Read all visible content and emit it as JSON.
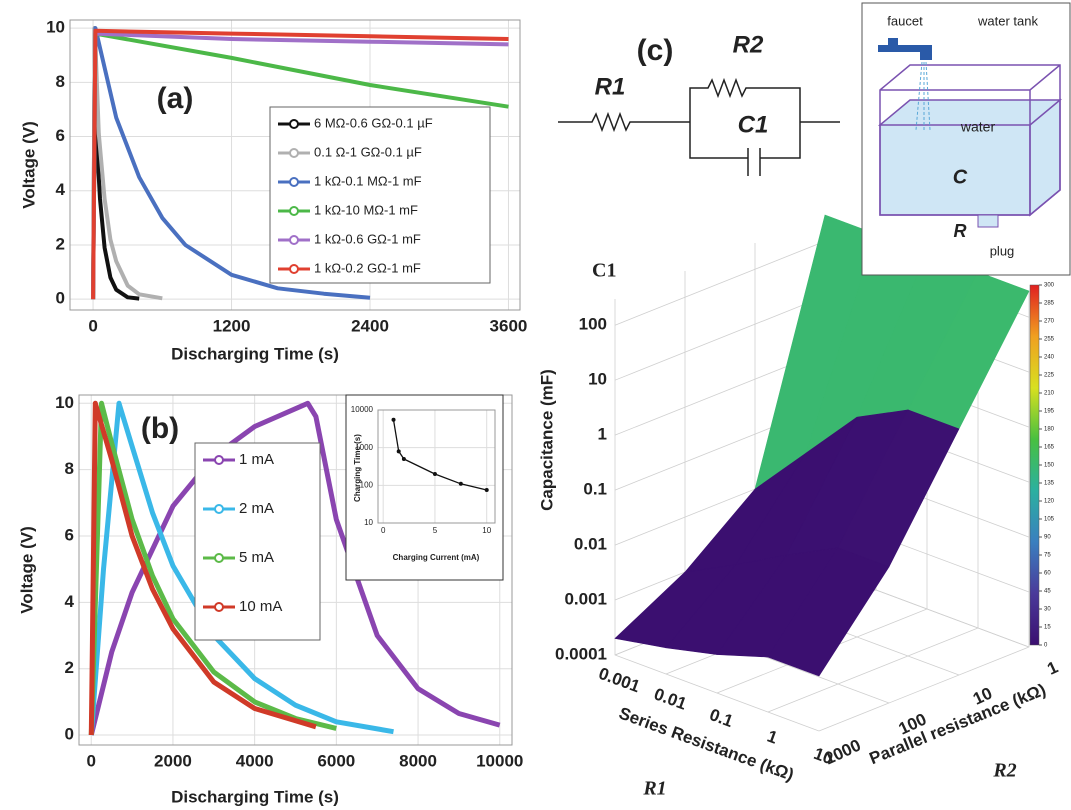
{
  "chart_data": [
    {
      "type": "line",
      "title": "(a)",
      "x_label": "Discharging Time (s)",
      "y_label": "Voltage (V)",
      "xlim": [
        -200,
        3700
      ],
      "ylim": [
        -0.4,
        10.3
      ],
      "xticks": [
        0,
        1200,
        2400,
        3600
      ],
      "yticks": [
        0,
        2,
        4,
        6,
        8,
        10
      ],
      "grid": true,
      "series": [
        {
          "name": "6 MΩ-0.6 GΩ-0.1 µF",
          "color": "#111111",
          "x": [
            0,
            15,
            30,
            60,
            100,
            150,
            200,
            300,
            400
          ],
          "values": [
            0,
            10,
            6,
            3.7,
            1.9,
            0.8,
            0.35,
            0.07,
            0.02
          ]
        },
        {
          "name": "0.1 Ω-1 GΩ-0.1 µF",
          "color": "#b0b0b0",
          "x": [
            0,
            15,
            50,
            100,
            150,
            200,
            300,
            400,
            600
          ],
          "values": [
            0,
            10,
            6.1,
            3.7,
            2.2,
            1.4,
            0.5,
            0.18,
            0.03
          ]
        },
        {
          "name": "1 kΩ-0.1 MΩ-1 mF",
          "color": "#4a70c0",
          "x": [
            0,
            20,
            200,
            400,
            600,
            800,
            1200,
            1600,
            2000,
            2400
          ],
          "values": [
            0,
            10,
            6.7,
            4.5,
            3,
            2,
            0.9,
            0.4,
            0.2,
            0.05
          ]
        },
        {
          "name": "1 kΩ-10 MΩ-1 mF",
          "color": "#4cb848",
          "x": [
            0,
            20,
            1200,
            2400,
            3600
          ],
          "values": [
            0,
            9.8,
            8.9,
            7.9,
            7.1
          ]
        },
        {
          "name": "1 kΩ-0.6 GΩ-1 mF",
          "color": "#a070c8",
          "x": [
            0,
            20,
            1200,
            2400,
            3600
          ],
          "values": [
            0,
            9.8,
            9.6,
            9.5,
            9.4
          ]
        },
        {
          "name": "1 kΩ-0.2 GΩ-1 mF",
          "color": "#e04030",
          "x": [
            0,
            20,
            1200,
            2400,
            3600
          ],
          "values": [
            0,
            9.9,
            9.8,
            9.7,
            9.6
          ]
        }
      ]
    },
    {
      "type": "line",
      "title": "(b)",
      "x_label": "Discharging Time (s)",
      "y_label": "Voltage (V)",
      "xlim": [
        -300,
        10300
      ],
      "ylim": [
        -0.3,
        10.25
      ],
      "xticks": [
        0,
        2000,
        4000,
        6000,
        8000,
        10000
      ],
      "yticks": [
        0,
        2,
        4,
        6,
        8,
        10
      ],
      "grid": true,
      "series": [
        {
          "name": "1 mA",
          "color": "#8a45b0",
          "x": [
            0,
            500,
            1000,
            2000,
            3000,
            4000,
            5300,
            5500,
            6000,
            7000,
            8000,
            9000,
            10000
          ],
          "values": [
            0,
            2.5,
            4.3,
            6.9,
            8.4,
            9.3,
            10,
            9.6,
            6.5,
            3,
            1.4,
            0.65,
            0.3
          ]
        },
        {
          "name": "2 mA",
          "color": "#3ab8e8",
          "x": [
            0,
            300,
            680,
            1000,
            1500,
            2000,
            3000,
            4000,
            5000,
            6000,
            7400
          ],
          "values": [
            0,
            5,
            10,
            8.7,
            6.7,
            5.1,
            3,
            1.7,
            0.9,
            0.4,
            0.1
          ]
        },
        {
          "name": "5 mA",
          "color": "#5cba48",
          "x": [
            0,
            250,
            500,
            1000,
            1500,
            2000,
            3000,
            4000,
            5000,
            6000
          ],
          "values": [
            0,
            10,
            8.8,
            6.5,
            4.8,
            3.5,
            1.9,
            1,
            0.5,
            0.2
          ]
        },
        {
          "name": "10 mA",
          "color": "#d03a28",
          "x": [
            0,
            100,
            500,
            1000,
            1500,
            2000,
            3000,
            4000,
            5500
          ],
          "values": [
            0,
            10,
            8.3,
            6,
            4.4,
            3.2,
            1.6,
            0.8,
            0.25
          ]
        }
      ]
    },
    {
      "type": "line",
      "x_label": "Charging Current (mA)",
      "y_label": "Charging Time (s)",
      "log_y": true,
      "xlim": [
        -0.5,
        10.8
      ],
      "ylim": [
        10,
        10000
      ],
      "xticks": [
        0,
        5,
        10
      ],
      "yticks": [
        10,
        100,
        1000,
        10000
      ],
      "grid": true,
      "series": [
        {
          "color": "#111111",
          "x": [
            1,
            1.5,
            2,
            5,
            7.5,
            10
          ],
          "values": [
            5500,
            800,
            500,
            200,
            110,
            75
          ]
        }
      ]
    },
    {
      "type": "surface",
      "z_title": "C1",
      "z_label": "Capacitance (mF)",
      "x_label": "Series Resistance (kΩ)",
      "x_symbol": "R1",
      "y_label": "Parallel resistance (kΩ)",
      "y_symbol": "R2",
      "x": [
        0.001,
        0.01,
        0.1,
        1,
        10
      ],
      "y": [
        1000,
        100,
        10,
        1
      ],
      "values": [
        [
          0.0002,
          0.0003,
          0.0005,
          0.001,
          0.001
        ],
        [
          0.001,
          0.003,
          0.01,
          0.03,
          0.03
        ],
        [
          0.01,
          0.1,
          1,
          3,
          3
        ],
        [
          300,
          300,
          300,
          300,
          300
        ]
      ],
      "xlim": [
        0.001,
        10
      ],
      "ylim": [
        1000,
        1
      ],
      "zlim": [
        0.0001,
        300
      ],
      "xticks": [
        0.001,
        0.01,
        0.1,
        1,
        10
      ],
      "yticks": [
        1000,
        100,
        10,
        1
      ],
      "zticks": [
        0.0001,
        0.001,
        0.01,
        0.1,
        1,
        10,
        100
      ],
      "colorbar_lim": [
        0,
        300
      ],
      "colorbar_ticks": [
        0,
        15,
        30,
        45,
        60,
        75,
        90,
        105,
        120,
        135,
        150,
        165,
        180,
        195,
        210,
        225,
        240,
        255,
        270,
        285,
        300
      ],
      "colormap": [
        "#3b0f70",
        "#4a3a9a",
        "#3a7fbf",
        "#2bb0a0",
        "#48c040",
        "#d8e020",
        "#f0a020",
        "#e02020"
      ]
    }
  ],
  "diagram": {
    "label": "(c)",
    "circuit": {
      "r1": "R1",
      "r2": "R2",
      "c1": "C1"
    },
    "tank": {
      "faucet": "faucet",
      "title": "water tank",
      "water": "water",
      "c": "C",
      "r": "R",
      "plug": "plug"
    }
  }
}
